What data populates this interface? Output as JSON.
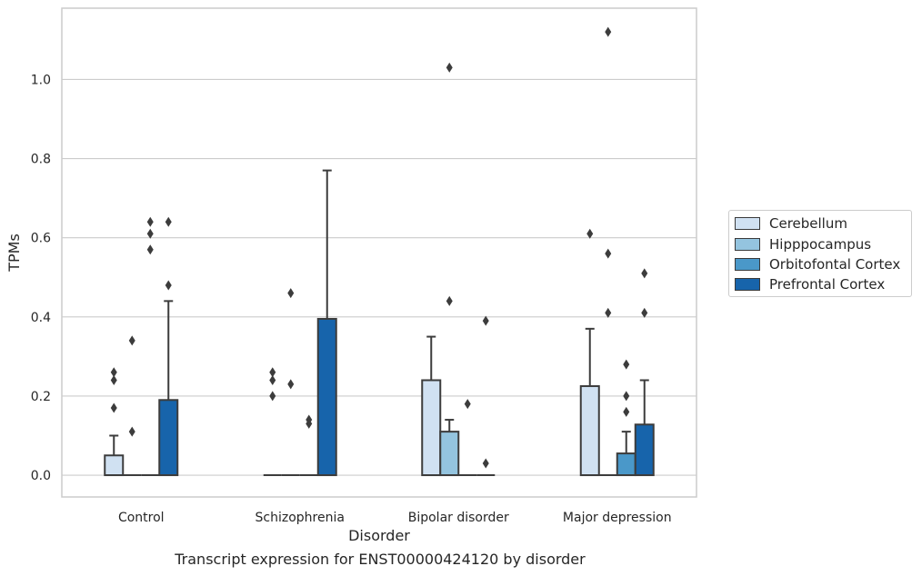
{
  "caption": "Transcript expression for ENST00000424120 by disorder",
  "chart_data": {
    "type": "box",
    "xlabel": "Disorder",
    "ylabel": "TPMs",
    "ylim": [
      -0.055,
      1.18
    ],
    "yticks": [
      0.0,
      0.2,
      0.4,
      0.6,
      0.8,
      1.0
    ],
    "grid": "horizontal",
    "legend_position": "center-right",
    "categories": [
      "Control",
      "Schizophrenia",
      "Bipolar disorder",
      "Major depression"
    ],
    "series": [
      {
        "name": "Cerebellum",
        "color": "#d0e1f2",
        "boxes": [
          {
            "q1": 0.0,
            "median": 0.0,
            "q3": 0.05,
            "whisker_low": 0.0,
            "whisker_high": 0.1,
            "outliers": [
              0.26,
              0.24,
              0.17
            ]
          },
          {
            "q1": 0.0,
            "median": 0.0,
            "q3": 0.0,
            "whisker_low": 0.0,
            "whisker_high": 0.0,
            "outliers": [
              0.26,
              0.24,
              0.2
            ]
          },
          {
            "q1": 0.0,
            "median": 0.0,
            "q3": 0.24,
            "whisker_low": 0.0,
            "whisker_high": 0.35,
            "outliers": []
          },
          {
            "q1": 0.0,
            "median": 0.0,
            "q3": 0.225,
            "whisker_low": 0.0,
            "whisker_high": 0.37,
            "outliers": [
              0.61
            ]
          }
        ]
      },
      {
        "name": "Hipppocampus",
        "color": "#94c4df",
        "boxes": [
          {
            "q1": 0.0,
            "median": 0.0,
            "q3": 0.0,
            "whisker_low": 0.0,
            "whisker_high": 0.0,
            "outliers": [
              0.34,
              0.11
            ]
          },
          {
            "q1": 0.0,
            "median": 0.0,
            "q3": 0.0,
            "whisker_low": 0.0,
            "whisker_high": 0.0,
            "outliers": [
              0.46,
              0.23
            ]
          },
          {
            "q1": 0.0,
            "median": 0.0,
            "q3": 0.11,
            "whisker_low": 0.0,
            "whisker_high": 0.14,
            "outliers": [
              1.03,
              0.44
            ]
          },
          {
            "q1": 0.0,
            "median": 0.0,
            "q3": 0.0,
            "whisker_low": 0.0,
            "whisker_high": 0.0,
            "outliers": [
              1.12,
              0.56,
              0.41
            ]
          }
        ]
      },
      {
        "name": "Orbitofontal Cortex",
        "color": "#4a98c9",
        "boxes": [
          {
            "q1": 0.0,
            "median": 0.0,
            "q3": 0.0,
            "whisker_low": 0.0,
            "whisker_high": 0.0,
            "outliers": [
              0.64,
              0.61,
              0.57
            ]
          },
          {
            "q1": 0.0,
            "median": 0.0,
            "q3": 0.0,
            "whisker_low": 0.0,
            "whisker_high": 0.0,
            "outliers": [
              0.14,
              0.13
            ]
          },
          {
            "q1": 0.0,
            "median": 0.0,
            "q3": 0.0,
            "whisker_low": 0.0,
            "whisker_high": 0.0,
            "outliers": [
              0.18
            ]
          },
          {
            "q1": 0.0,
            "median": 0.0,
            "q3": 0.055,
            "whisker_low": 0.0,
            "whisker_high": 0.11,
            "outliers": [
              0.28,
              0.2,
              0.16
            ]
          }
        ]
      },
      {
        "name": "Prefrontal Cortex",
        "color": "#1764ab",
        "boxes": [
          {
            "q1": 0.0,
            "median": 0.0,
            "q3": 0.19,
            "whisker_low": 0.0,
            "whisker_high": 0.44,
            "outliers": [
              0.64,
              0.48
            ]
          },
          {
            "q1": 0.0,
            "median": 0.0,
            "q3": 0.395,
            "whisker_low": 0.0,
            "whisker_high": 0.77,
            "outliers": []
          },
          {
            "q1": 0.0,
            "median": 0.0,
            "q3": 0.0,
            "whisker_low": 0.0,
            "whisker_high": 0.0,
            "outliers": [
              0.39,
              0.03
            ]
          },
          {
            "q1": 0.0,
            "median": 0.0,
            "q3": 0.128,
            "whisker_low": 0.0,
            "whisker_high": 0.24,
            "outliers": [
              0.51,
              0.41
            ]
          }
        ]
      }
    ]
  }
}
